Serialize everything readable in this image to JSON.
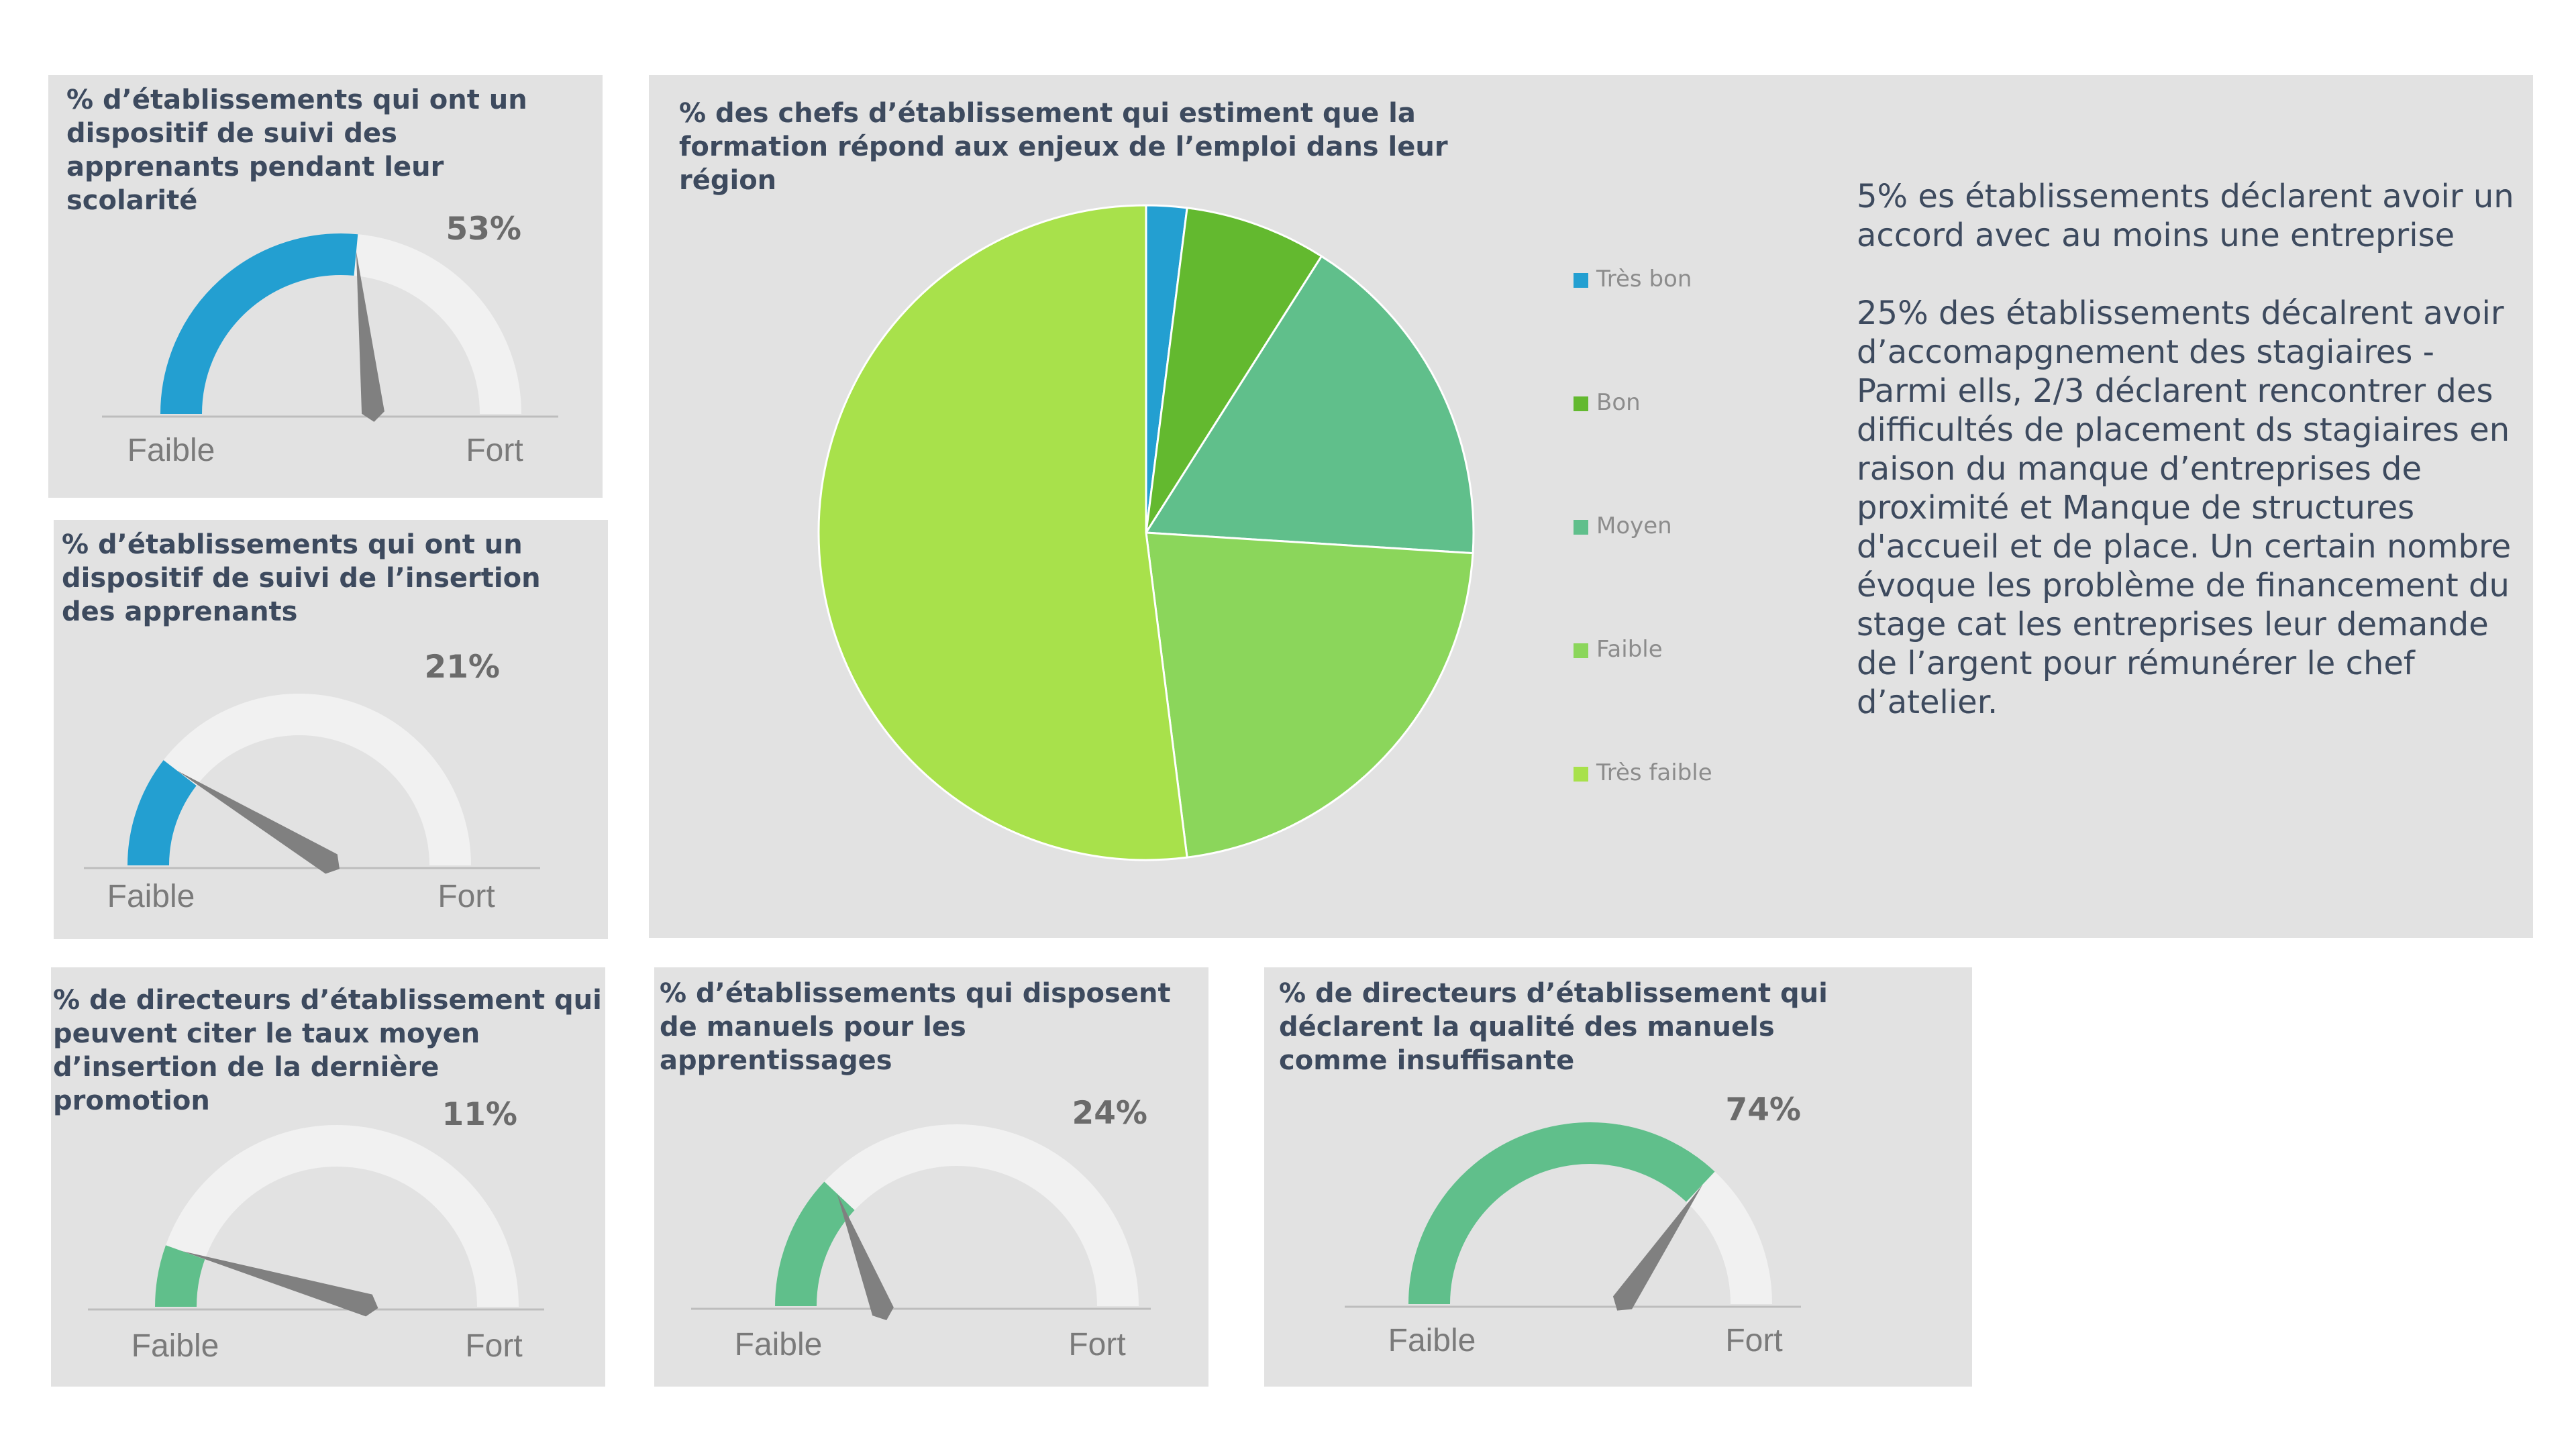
{
  "colors": {
    "panel_bg": "#e2e2e2",
    "blue": "#239fd1",
    "mid_green": "#60bf8b",
    "track": "#f1f1f1",
    "needle": "#808080",
    "baseline": "#bdbdbd"
  },
  "gauge_axis": {
    "low": "Faible",
    "high": "Fort"
  },
  "gauges": [
    {
      "title": "% d’établissements qui ont un dispositif de suivi des apprenants pendant leur scolarité",
      "value_label": "53%",
      "value": 0.53
    },
    {
      "title": "% d’établissements qui ont un dispositif de suivi de l’insertion des apprenants",
      "value_label": "21%",
      "value": 0.21
    },
    {
      "title": "% de directeurs d’établissement qui peuvent citer le taux moyen d’insertion de la dernière promotion",
      "value_label": "11%",
      "value": 0.11
    },
    {
      "title": "% d’établissements qui disposent de manuels pour les apprentissages",
      "value_label": "24%",
      "value": 0.24
    },
    {
      "title": "% de directeurs d’établissement qui déclarent la qualité des manuels comme insuffisante",
      "value_label": "74%",
      "value": 0.74
    }
  ],
  "chart_data": [
    {
      "type": "gauge",
      "title": "% d’établissements qui ont un dispositif de suivi des apprenants pendant leur scolarité",
      "value": 53,
      "unit": "%",
      "range": [
        0,
        100
      ],
      "min_label": "Faible",
      "max_label": "Fort"
    },
    {
      "type": "gauge",
      "title": "% d’établissements qui ont un dispositif de suivi de l’insertion des apprenants",
      "value": 21,
      "unit": "%",
      "range": [
        0,
        100
      ],
      "min_label": "Faible",
      "max_label": "Fort"
    },
    {
      "type": "pie",
      "title": "% des chefs d’établissement qui estiment que la formation répond aux enjeux de l’emploi dans leur région",
      "categories": [
        "Très bon",
        "Bon",
        "Moyen",
        "Faible",
        "Très faible"
      ],
      "values": [
        2,
        7,
        17,
        22,
        52
      ],
      "colors": [
        "#239fd1",
        "#63b92f",
        "#60bf8b",
        "#8bd65b",
        "#a8e14b"
      ],
      "legend": "right"
    },
    {
      "type": "gauge",
      "title": "% de directeurs d’établissement qui peuvent citer le taux moyen d’insertion de la dernière promotion",
      "value": 11,
      "unit": "%",
      "range": [
        0,
        100
      ],
      "min_label": "Faible",
      "max_label": "Fort"
    },
    {
      "type": "gauge",
      "title": "% d’établissements qui disposent de manuels pour les apprentissages",
      "value": 24,
      "unit": "%",
      "range": [
        0,
        100
      ],
      "min_label": "Faible",
      "max_label": "Fort"
    },
    {
      "type": "gauge",
      "title": "% de directeurs d’établissement qui déclarent la qualité des manuels comme insuffisante",
      "value": 74,
      "unit": "%",
      "range": [
        0,
        100
      ],
      "min_label": "Faible",
      "max_label": "Fort"
    }
  ],
  "pie": {
    "title": "% des chefs d’établissement qui estiment que la formation répond aux enjeux de l’emploi dans leur région",
    "categories": [
      "Très bon",
      "Bon",
      "Moyen",
      "Faible",
      "Très faible"
    ],
    "values": [
      2,
      7,
      17,
      22,
      52
    ],
    "colors": [
      "#239fd1",
      "#63b92f",
      "#60bf8b",
      "#8bd65b",
      "#a8e14b"
    ]
  },
  "notes": {
    "paragraph1": "5% es établissements déclarent avoir un accord avec au moins une entreprise",
    "paragraph2": "25% des établissements décalrent avoir d’accomapgnement des stagiaires  - Parmi ells, 2/3 déclarent rencontrer des difficultés de placement ds stagiaires en raison du manque d’entreprises de proximité et  Manque de structures d'accueil et de place. Un certain nombre évoque les problème de financement du stage cat les entreprises leur demande de l’argent pour rémunérer le chef d’atelier."
  }
}
